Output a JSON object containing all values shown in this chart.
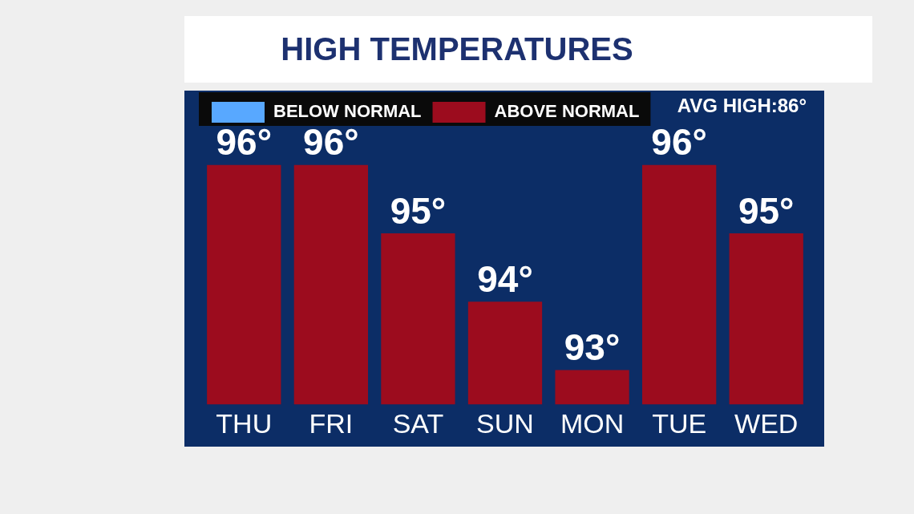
{
  "chart_data": {
    "type": "bar",
    "title": "HIGH TEMPERATURES",
    "categories": [
      "THU",
      "FRI",
      "SAT",
      "SUN",
      "MON",
      "TUE",
      "WED"
    ],
    "series": [
      {
        "name": "BELOW NORMAL",
        "color": "#58a8ff",
        "values": [
          null,
          null,
          null,
          null,
          null,
          null,
          null
        ]
      },
      {
        "name": "ABOVE NORMAL",
        "color": "#9c0c1e",
        "values": [
          96,
          96,
          95,
          94,
          93,
          96,
          95
        ],
        "value_labels": [
          "96°",
          "96°",
          "95°",
          "94°",
          "93°",
          "96°",
          "95°"
        ]
      }
    ],
    "tick_labels": "x",
    "grid": false,
    "legend": "top left",
    "annotations": [
      "AVG HIGH:86°"
    ]
  }
}
